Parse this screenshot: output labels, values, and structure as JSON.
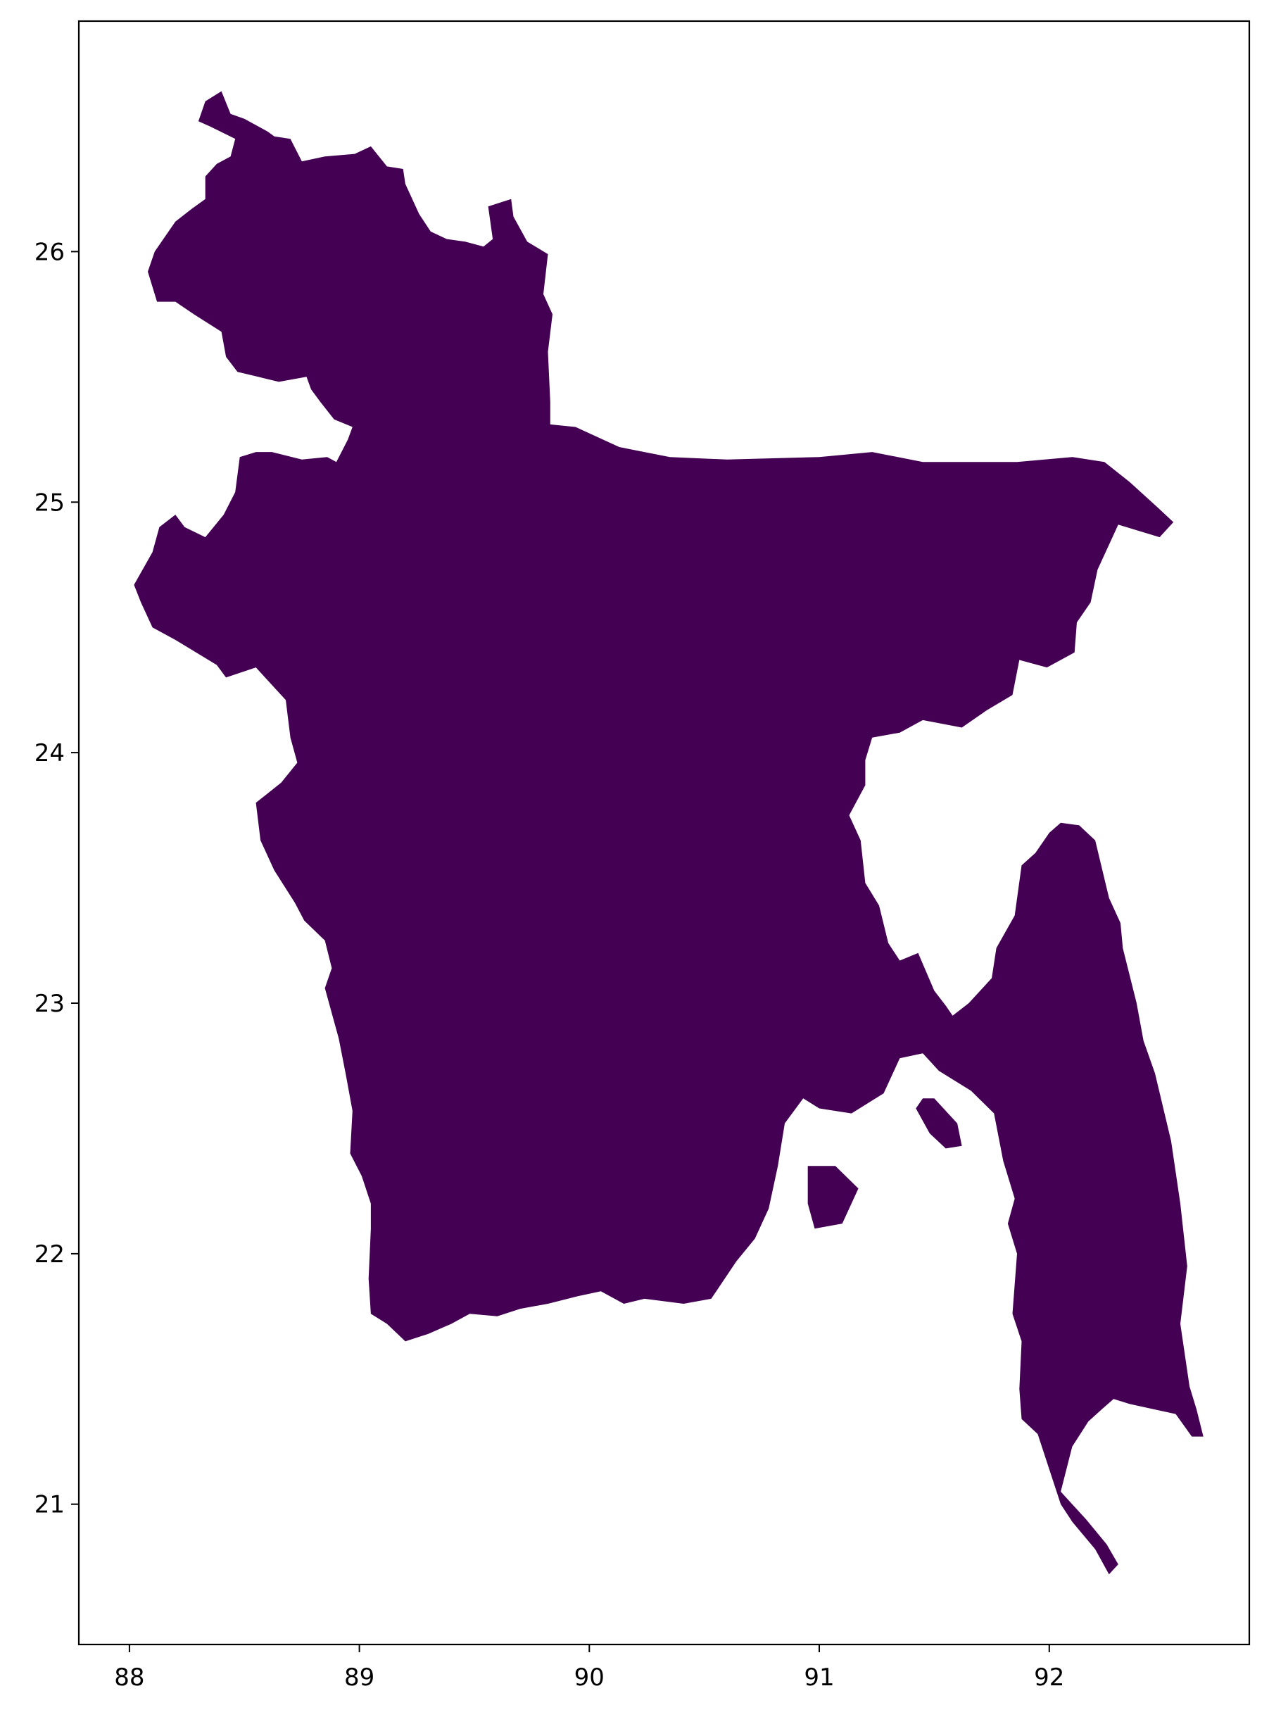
{
  "chart_data": {
    "type": "map",
    "title": "",
    "xlabel": "",
    "ylabel": "",
    "xlim": [
      87.78,
      92.87
    ],
    "ylim": [
      20.44,
      26.92
    ],
    "x_ticks": [
      88,
      89,
      90,
      91,
      92
    ],
    "y_ticks": [
      21,
      22,
      23,
      24,
      25,
      26
    ],
    "x_tick_labels": [
      "88",
      "89",
      "90",
      "91",
      "92"
    ],
    "y_tick_labels": [
      "21",
      "22",
      "23",
      "24",
      "25",
      "26"
    ],
    "grid": false,
    "regions": [
      {
        "fill_color": "#440154",
        "outline_lonlat": [
          [
            88.33,
            26.6
          ],
          [
            88.4,
            26.64
          ],
          [
            88.44,
            26.55
          ],
          [
            88.5,
            26.53
          ],
          [
            88.6,
            26.48
          ],
          [
            88.63,
            26.46
          ],
          [
            88.7,
            26.45
          ],
          [
            88.75,
            26.36
          ],
          [
            88.85,
            26.38
          ],
          [
            88.98,
            26.39
          ],
          [
            89.05,
            26.42
          ],
          [
            89.12,
            26.34
          ],
          [
            89.19,
            26.33
          ],
          [
            89.2,
            26.27
          ],
          [
            89.26,
            26.15
          ],
          [
            89.31,
            26.08
          ],
          [
            89.38,
            26.05
          ],
          [
            89.46,
            26.04
          ],
          [
            89.54,
            26.02
          ],
          [
            89.58,
            26.05
          ],
          [
            89.56,
            26.18
          ],
          [
            89.66,
            26.21
          ],
          [
            89.67,
            26.14
          ],
          [
            89.73,
            26.04
          ],
          [
            89.82,
            25.99
          ],
          [
            89.8,
            25.83
          ],
          [
            89.84,
            25.75
          ],
          [
            89.82,
            25.6
          ],
          [
            89.83,
            25.4
          ],
          [
            89.83,
            25.31
          ],
          [
            89.94,
            25.3
          ],
          [
            90.13,
            25.22
          ],
          [
            90.35,
            25.18
          ],
          [
            90.6,
            25.17
          ],
          [
            91.0,
            25.18
          ],
          [
            91.23,
            25.2
          ],
          [
            91.45,
            25.16
          ],
          [
            91.67,
            25.16
          ],
          [
            91.86,
            25.16
          ],
          [
            92.1,
            25.18
          ],
          [
            92.24,
            25.16
          ],
          [
            92.35,
            25.08
          ],
          [
            92.47,
            24.98
          ],
          [
            92.54,
            24.92
          ],
          [
            92.48,
            24.86
          ],
          [
            92.3,
            24.91
          ],
          [
            92.21,
            24.73
          ],
          [
            92.18,
            24.6
          ],
          [
            92.12,
            24.52
          ],
          [
            92.11,
            24.4
          ],
          [
            91.99,
            24.34
          ],
          [
            91.87,
            24.37
          ],
          [
            91.84,
            24.23
          ],
          [
            91.73,
            24.17
          ],
          [
            91.62,
            24.1
          ],
          [
            91.45,
            24.13
          ],
          [
            91.35,
            24.08
          ],
          [
            91.23,
            24.06
          ],
          [
            91.2,
            23.97
          ],
          [
            91.2,
            23.87
          ],
          [
            91.13,
            23.75
          ],
          [
            91.18,
            23.65
          ],
          [
            91.2,
            23.48
          ],
          [
            91.26,
            23.39
          ],
          [
            91.3,
            23.24
          ],
          [
            91.35,
            23.17
          ],
          [
            91.43,
            23.2
          ],
          [
            91.5,
            23.05
          ],
          [
            91.55,
            22.99
          ],
          [
            91.58,
            22.95
          ],
          [
            91.65,
            23.0
          ],
          [
            91.75,
            23.1
          ],
          [
            91.77,
            23.22
          ],
          [
            91.85,
            23.35
          ],
          [
            91.88,
            23.55
          ],
          [
            91.94,
            23.6
          ],
          [
            92.0,
            23.68
          ],
          [
            92.05,
            23.72
          ],
          [
            92.13,
            23.71
          ],
          [
            92.2,
            23.65
          ],
          [
            92.26,
            23.42
          ],
          [
            92.31,
            23.32
          ],
          [
            92.32,
            23.22
          ],
          [
            92.38,
            23.0
          ],
          [
            92.41,
            22.85
          ],
          [
            92.46,
            22.72
          ],
          [
            92.53,
            22.45
          ],
          [
            92.57,
            22.2
          ],
          [
            92.6,
            21.95
          ],
          [
            92.57,
            21.72
          ],
          [
            92.61,
            21.47
          ],
          [
            92.64,
            21.38
          ],
          [
            92.67,
            21.27
          ],
          [
            92.62,
            21.27
          ],
          [
            92.55,
            21.36
          ],
          [
            92.35,
            21.4
          ],
          [
            92.28,
            21.42
          ],
          [
            92.23,
            21.38
          ],
          [
            92.17,
            21.33
          ],
          [
            92.1,
            21.23
          ],
          [
            92.05,
            21.05
          ],
          [
            92.16,
            20.94
          ],
          [
            92.25,
            20.84
          ],
          [
            92.3,
            20.76
          ],
          [
            92.26,
            20.72
          ],
          [
            92.2,
            20.82
          ],
          [
            92.1,
            20.93
          ],
          [
            92.05,
            21.0
          ],
          [
            91.95,
            21.28
          ],
          [
            91.88,
            21.34
          ],
          [
            91.87,
            21.46
          ],
          [
            91.88,
            21.65
          ],
          [
            91.84,
            21.76
          ],
          [
            91.86,
            22.0
          ],
          [
            91.82,
            22.12
          ],
          [
            91.85,
            22.22
          ],
          [
            91.8,
            22.37
          ],
          [
            91.76,
            22.56
          ],
          [
            91.66,
            22.65
          ],
          [
            91.52,
            22.73
          ],
          [
            91.45,
            22.8
          ],
          [
            91.35,
            22.78
          ],
          [
            91.28,
            22.64
          ],
          [
            91.14,
            22.56
          ],
          [
            91.0,
            22.58
          ],
          [
            90.93,
            22.62
          ],
          [
            90.85,
            22.52
          ],
          [
            90.82,
            22.35
          ],
          [
            90.78,
            22.18
          ],
          [
            90.72,
            22.06
          ],
          [
            90.64,
            21.97
          ],
          [
            90.53,
            21.82
          ],
          [
            90.41,
            21.8
          ],
          [
            90.24,
            21.82
          ],
          [
            90.15,
            21.8
          ],
          [
            90.05,
            21.85
          ],
          [
            89.95,
            21.83
          ],
          [
            89.82,
            21.8
          ],
          [
            89.7,
            21.78
          ],
          [
            89.6,
            21.75
          ],
          [
            89.48,
            21.76
          ],
          [
            89.4,
            21.72
          ],
          [
            89.3,
            21.68
          ],
          [
            89.2,
            21.65
          ],
          [
            89.12,
            21.72
          ],
          [
            89.05,
            21.76
          ],
          [
            89.04,
            21.9
          ],
          [
            89.05,
            22.1
          ],
          [
            89.05,
            22.2
          ],
          [
            89.01,
            22.31
          ],
          [
            88.96,
            22.4
          ],
          [
            88.97,
            22.57
          ],
          [
            88.94,
            22.72
          ],
          [
            88.91,
            22.86
          ],
          [
            88.88,
            22.96
          ],
          [
            88.85,
            23.06
          ],
          [
            88.88,
            23.14
          ],
          [
            88.85,
            23.25
          ],
          [
            88.76,
            23.33
          ],
          [
            88.72,
            23.4
          ],
          [
            88.63,
            23.53
          ],
          [
            88.57,
            23.65
          ],
          [
            88.55,
            23.8
          ],
          [
            88.66,
            23.88
          ],
          [
            88.73,
            23.96
          ],
          [
            88.7,
            24.06
          ],
          [
            88.68,
            24.21
          ],
          [
            88.64,
            24.25
          ],
          [
            88.55,
            24.34
          ],
          [
            88.42,
            24.3
          ],
          [
            88.38,
            24.35
          ],
          [
            88.2,
            24.45
          ],
          [
            88.1,
            24.5
          ],
          [
            88.05,
            24.6
          ],
          [
            88.02,
            24.67
          ],
          [
            88.1,
            24.8
          ],
          [
            88.13,
            24.9
          ],
          [
            88.2,
            24.95
          ],
          [
            88.24,
            24.9
          ],
          [
            88.33,
            24.86
          ],
          [
            88.41,
            24.95
          ],
          [
            88.46,
            25.04
          ],
          [
            88.48,
            25.18
          ],
          [
            88.55,
            25.2
          ],
          [
            88.62,
            25.2
          ],
          [
            88.75,
            25.17
          ],
          [
            88.86,
            25.18
          ],
          [
            88.9,
            25.16
          ],
          [
            88.95,
            25.25
          ],
          [
            88.97,
            25.3
          ],
          [
            88.89,
            25.33
          ],
          [
            88.83,
            25.4
          ],
          [
            88.79,
            25.45
          ],
          [
            88.77,
            25.5
          ],
          [
            88.65,
            25.48
          ],
          [
            88.56,
            25.5
          ],
          [
            88.47,
            25.52
          ],
          [
            88.42,
            25.58
          ],
          [
            88.4,
            25.68
          ],
          [
            88.28,
            25.75
          ],
          [
            88.2,
            25.8
          ],
          [
            88.12,
            25.8
          ],
          [
            88.08,
            25.92
          ],
          [
            88.11,
            26.0
          ],
          [
            88.2,
            26.12
          ],
          [
            88.27,
            26.17
          ],
          [
            88.33,
            26.21
          ],
          [
            88.33,
            26.3
          ],
          [
            88.38,
            26.35
          ],
          [
            88.44,
            26.38
          ],
          [
            88.46,
            26.45
          ],
          [
            88.35,
            26.5
          ],
          [
            88.3,
            26.52
          ],
          [
            88.33,
            26.6
          ]
        ]
      },
      {
        "fill_color": "#440154",
        "outline_lonlat": [
          [
            91.42,
            22.58
          ],
          [
            91.48,
            22.48
          ],
          [
            91.55,
            22.42
          ],
          [
            91.62,
            22.43
          ],
          [
            91.6,
            22.52
          ],
          [
            91.5,
            22.62
          ],
          [
            91.45,
            22.62
          ],
          [
            91.42,
            22.58
          ]
        ]
      },
      {
        "fill_color": "#440154",
        "outline_lonlat": [
          [
            90.95,
            22.35
          ],
          [
            91.07,
            22.35
          ],
          [
            91.17,
            22.26
          ],
          [
            91.1,
            22.12
          ],
          [
            90.98,
            22.1
          ],
          [
            90.95,
            22.2
          ],
          [
            90.95,
            22.35
          ]
        ]
      }
    ]
  }
}
